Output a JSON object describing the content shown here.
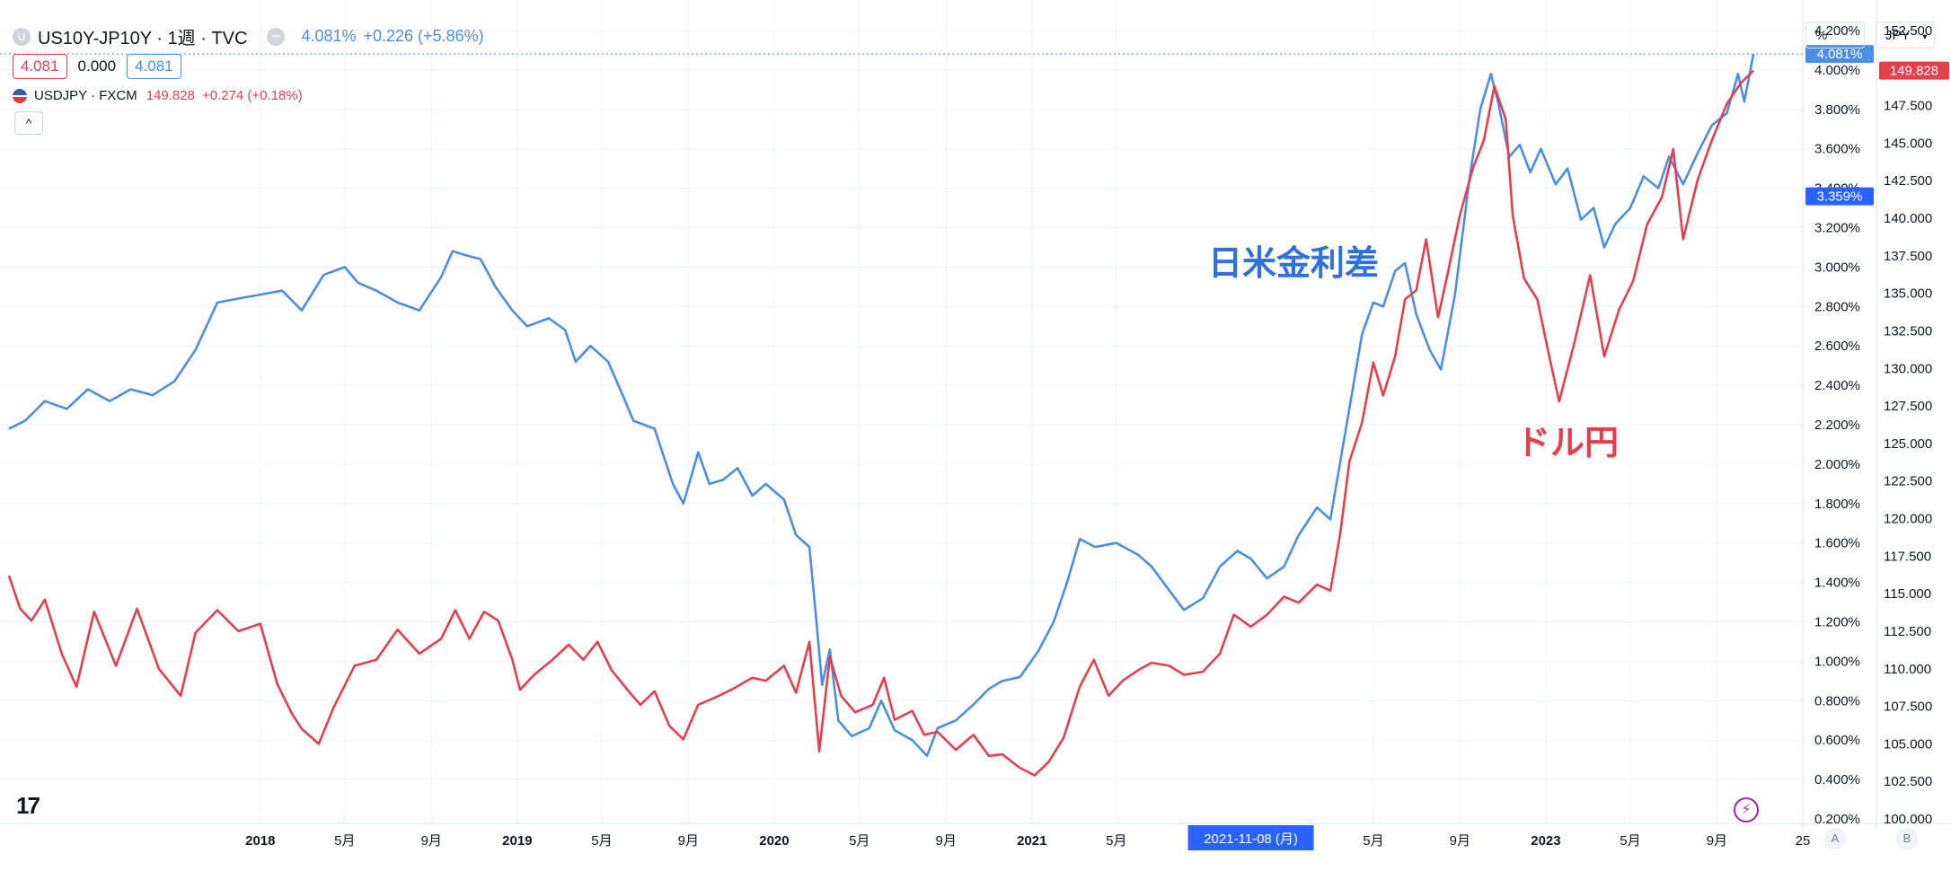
{
  "legend": {
    "spread": {
      "icon_letter": "U",
      "symbol": "US10Y-JP10Y · 1週 · TVC",
      "last": "4.081%",
      "change": "+0.226 (+5.86%)",
      "ohlc_box1": "4.081",
      "ohlc_mid": "0.000",
      "ohlc_box2": "4.081"
    },
    "usdjpy": {
      "symbol": "USDJPY · FXCM",
      "last": "149.828",
      "change": "+0.274 (+0.18%)"
    },
    "collapse_icon": "^"
  },
  "toolbar": {
    "unit_left": "%",
    "unit_right": "JPY"
  },
  "price_tags": {
    "spread_last": "4.081%",
    "usdjpy_last": "149.828",
    "spread_marker": "3.359%"
  },
  "crosshair_date": "2021-11-08 (月)",
  "annotations": {
    "spread": "日米金利差",
    "usdjpy": "ドル円"
  },
  "scale_buttons": {
    "a": "A",
    "b": "B"
  },
  "colors": {
    "spread": "#4a90e2",
    "usdjpy": "#e53e4d",
    "grid": "#f0f3fa",
    "crosshair_tag": "#2962ff"
  },
  "icons": {
    "logo": "tradingview-logo-icon",
    "bolt": "lightning-icon",
    "flag": "us-jp-flag-icon"
  },
  "chart_data": {
    "type": "line",
    "x_unit": "weekly",
    "x_range": [
      "2017-01-09",
      "2024-01-01"
    ],
    "left_axis": {
      "unit": "%",
      "ticks": [
        "0.200%",
        "0.400%",
        "0.600%",
        "0.800%",
        "1.000%",
        "1.200%",
        "1.400%",
        "1.600%",
        "1.800%",
        "2.000%",
        "2.200%",
        "2.400%",
        "2.600%",
        "2.800%",
        "3.000%",
        "3.200%",
        "3.400%",
        "3.600%",
        "3.800%",
        "4.000%",
        "4.200%"
      ],
      "range": [
        0.2,
        4.2
      ]
    },
    "right_axis": {
      "unit": "JPY",
      "ticks": [
        "100.000",
        "102.500",
        "105.000",
        "107.500",
        "110.000",
        "112.500",
        "115.000",
        "117.500",
        "120.000",
        "122.500",
        "125.000",
        "127.500",
        "130.000",
        "132.500",
        "135.000",
        "137.500",
        "140.000",
        "142.500",
        "145.000",
        "147.500",
        "150.000",
        "152.500"
      ],
      "range": [
        100,
        152.5
      ]
    },
    "x_tick_labels": [
      {
        "date": "2018-01-01",
        "label": "2018",
        "bold": true
      },
      {
        "date": "2018-05-01",
        "label": "5月"
      },
      {
        "date": "2018-09-01",
        "label": "9月"
      },
      {
        "date": "2019-01-01",
        "label": "2019",
        "bold": true
      },
      {
        "date": "2019-05-01",
        "label": "5月"
      },
      {
        "date": "2019-09-01",
        "label": "9月"
      },
      {
        "date": "2020-01-01",
        "label": "2020",
        "bold": true
      },
      {
        "date": "2020-05-01",
        "label": "5月"
      },
      {
        "date": "2020-09-01",
        "label": "9月"
      },
      {
        "date": "2021-01-01",
        "label": "2021",
        "bold": true
      },
      {
        "date": "2021-05-01",
        "label": "5月"
      },
      {
        "date": "2022-05-01",
        "label": "5月"
      },
      {
        "date": "2022-09-01",
        "label": "9月"
      },
      {
        "date": "2023-01-01",
        "label": "2023",
        "bold": true
      },
      {
        "date": "2023-05-01",
        "label": "5月"
      },
      {
        "date": "2023-09-01",
        "label": "9月"
      },
      {
        "date": "2024-01-01",
        "label": "25"
      }
    ],
    "series": [
      {
        "name": "US10Y-JP10Y",
        "axis": "left",
        "color": "#4a90e2",
        "points": [
          [
            "2017-01-09",
            2.18
          ],
          [
            "2017-02-01",
            2.22
          ],
          [
            "2017-03-01",
            2.32
          ],
          [
            "2017-04-01",
            2.28
          ],
          [
            "2017-05-01",
            2.38
          ],
          [
            "2017-06-01",
            2.32
          ],
          [
            "2017-07-01",
            2.38
          ],
          [
            "2017-08-01",
            2.35
          ],
          [
            "2017-09-01",
            2.42
          ],
          [
            "2017-10-01",
            2.58
          ],
          [
            "2017-11-01",
            2.82
          ],
          [
            "2017-12-01",
            2.84
          ],
          [
            "2018-01-01",
            2.86
          ],
          [
            "2018-02-01",
            2.88
          ],
          [
            "2018-03-01",
            2.78
          ],
          [
            "2018-04-01",
            2.96
          ],
          [
            "2018-05-01",
            3.0
          ],
          [
            "2018-05-20",
            2.92
          ],
          [
            "2018-06-15",
            2.88
          ],
          [
            "2018-07-15",
            2.82
          ],
          [
            "2018-08-15",
            2.78
          ],
          [
            "2018-09-15",
            2.95
          ],
          [
            "2018-10-01",
            3.08
          ],
          [
            "2018-10-20",
            3.06
          ],
          [
            "2018-11-10",
            3.04
          ],
          [
            "2018-12-01",
            2.9
          ],
          [
            "2018-12-25",
            2.78
          ],
          [
            "2019-01-15",
            2.7
          ],
          [
            "2019-02-15",
            2.74
          ],
          [
            "2019-03-10",
            2.68
          ],
          [
            "2019-03-25",
            2.52
          ],
          [
            "2019-04-15",
            2.6
          ],
          [
            "2019-05-10",
            2.52
          ],
          [
            "2019-06-01",
            2.34
          ],
          [
            "2019-06-15",
            2.22
          ],
          [
            "2019-07-15",
            2.18
          ],
          [
            "2019-08-10",
            1.9
          ],
          [
            "2019-08-25",
            1.8
          ],
          [
            "2019-09-15",
            2.06
          ],
          [
            "2019-10-01",
            1.9
          ],
          [
            "2019-10-20",
            1.92
          ],
          [
            "2019-11-10",
            1.98
          ],
          [
            "2019-12-01",
            1.84
          ],
          [
            "2019-12-20",
            1.9
          ],
          [
            "2020-01-15",
            1.82
          ],
          [
            "2020-02-01",
            1.64
          ],
          [
            "2020-02-20",
            1.58
          ],
          [
            "2020-03-01",
            1.2
          ],
          [
            "2020-03-09",
            0.88
          ],
          [
            "2020-03-20",
            1.06
          ],
          [
            "2020-04-01",
            0.7
          ],
          [
            "2020-04-20",
            0.62
          ],
          [
            "2020-05-15",
            0.66
          ],
          [
            "2020-06-01",
            0.8
          ],
          [
            "2020-06-20",
            0.65
          ],
          [
            "2020-07-15",
            0.6
          ],
          [
            "2020-08-05",
            0.52
          ],
          [
            "2020-08-20",
            0.66
          ],
          [
            "2020-09-15",
            0.7
          ],
          [
            "2020-10-10",
            0.78
          ],
          [
            "2020-11-01",
            0.86
          ],
          [
            "2020-11-20",
            0.9
          ],
          [
            "2020-12-15",
            0.92
          ],
          [
            "2021-01-10",
            1.05
          ],
          [
            "2021-02-01",
            1.2
          ],
          [
            "2021-02-20",
            1.4
          ],
          [
            "2021-03-10",
            1.62
          ],
          [
            "2021-04-01",
            1.58
          ],
          [
            "2021-05-01",
            1.6
          ],
          [
            "2021-06-01",
            1.54
          ],
          [
            "2021-06-20",
            1.48
          ],
          [
            "2021-07-15",
            1.36
          ],
          [
            "2021-08-05",
            1.26
          ],
          [
            "2021-09-01",
            1.32
          ],
          [
            "2021-09-25",
            1.48
          ],
          [
            "2021-10-20",
            1.56
          ],
          [
            "2021-11-08",
            1.52
          ],
          [
            "2021-12-01",
            1.42
          ],
          [
            "2021-12-25",
            1.48
          ],
          [
            "2022-01-15",
            1.64
          ],
          [
            "2022-02-10",
            1.78
          ],
          [
            "2022-03-01",
            1.72
          ],
          [
            "2022-03-25",
            2.22
          ],
          [
            "2022-04-15",
            2.66
          ],
          [
            "2022-05-01",
            2.82
          ],
          [
            "2022-05-15",
            2.8
          ],
          [
            "2022-06-01",
            2.98
          ],
          [
            "2022-06-15",
            3.02
          ],
          [
            "2022-07-01",
            2.76
          ],
          [
            "2022-07-20",
            2.58
          ],
          [
            "2022-08-05",
            2.48
          ],
          [
            "2022-08-25",
            2.86
          ],
          [
            "2022-09-15",
            3.46
          ],
          [
            "2022-09-30",
            3.8
          ],
          [
            "2022-10-15",
            3.98
          ],
          [
            "2022-10-25",
            3.84
          ],
          [
            "2022-11-10",
            3.56
          ],
          [
            "2022-11-25",
            3.62
          ],
          [
            "2022-12-10",
            3.48
          ],
          [
            "2022-12-25",
            3.6
          ],
          [
            "2023-01-15",
            3.42
          ],
          [
            "2023-02-01",
            3.5
          ],
          [
            "2023-02-20",
            3.24
          ],
          [
            "2023-03-10",
            3.3
          ],
          [
            "2023-03-25",
            3.1
          ],
          [
            "2023-04-10",
            3.22
          ],
          [
            "2023-05-01",
            3.3
          ],
          [
            "2023-05-20",
            3.46
          ],
          [
            "2023-06-10",
            3.4
          ],
          [
            "2023-06-25",
            3.56
          ],
          [
            "2023-07-15",
            3.42
          ],
          [
            "2023-08-05",
            3.58
          ],
          [
            "2023-08-25",
            3.72
          ],
          [
            "2023-09-15",
            3.78
          ],
          [
            "2023-10-01",
            3.98
          ],
          [
            "2023-10-10",
            3.84
          ],
          [
            "2023-10-23",
            4.081
          ]
        ]
      },
      {
        "name": "USDJPY",
        "axis": "right",
        "color": "#e53e4d",
        "points": [
          [
            "2017-01-09",
            116.2
          ],
          [
            "2017-01-25",
            114.0
          ],
          [
            "2017-02-10",
            113.2
          ],
          [
            "2017-03-01",
            114.6
          ],
          [
            "2017-03-25",
            111.0
          ],
          [
            "2017-04-15",
            108.8
          ],
          [
            "2017-05-10",
            113.8
          ],
          [
            "2017-06-10",
            110.2
          ],
          [
            "2017-07-10",
            114.0
          ],
          [
            "2017-08-10",
            110.0
          ],
          [
            "2017-09-10",
            108.2
          ],
          [
            "2017-10-01",
            112.4
          ],
          [
            "2017-11-01",
            113.9
          ],
          [
            "2017-12-01",
            112.5
          ],
          [
            "2018-01-01",
            113.0
          ],
          [
            "2018-01-25",
            109.0
          ],
          [
            "2018-02-15",
            107.0
          ],
          [
            "2018-03-01",
            106.0
          ],
          [
            "2018-03-25",
            105.0
          ],
          [
            "2018-04-15",
            107.4
          ],
          [
            "2018-05-15",
            110.2
          ],
          [
            "2018-06-15",
            110.6
          ],
          [
            "2018-07-15",
            112.6
          ],
          [
            "2018-08-15",
            111.0
          ],
          [
            "2018-09-15",
            112.0
          ],
          [
            "2018-10-05",
            113.9
          ],
          [
            "2018-10-25",
            112.0
          ],
          [
            "2018-11-15",
            113.8
          ],
          [
            "2018-12-05",
            113.2
          ],
          [
            "2018-12-25",
            110.6
          ],
          [
            "2019-01-05",
            108.6
          ],
          [
            "2019-01-25",
            109.6
          ],
          [
            "2019-02-20",
            110.6
          ],
          [
            "2019-03-15",
            111.6
          ],
          [
            "2019-04-05",
            110.6
          ],
          [
            "2019-04-25",
            111.8
          ],
          [
            "2019-05-15",
            109.9
          ],
          [
            "2019-06-10",
            108.4
          ],
          [
            "2019-06-25",
            107.6
          ],
          [
            "2019-07-15",
            108.5
          ],
          [
            "2019-08-05",
            106.2
          ],
          [
            "2019-08-25",
            105.3
          ],
          [
            "2019-09-15",
            107.6
          ],
          [
            "2019-10-10",
            108.1
          ],
          [
            "2019-11-01",
            108.6
          ],
          [
            "2019-12-01",
            109.4
          ],
          [
            "2019-12-20",
            109.2
          ],
          [
            "2020-01-15",
            110.2
          ],
          [
            "2020-02-01",
            108.4
          ],
          [
            "2020-02-20",
            111.8
          ],
          [
            "2020-03-05",
            104.5
          ],
          [
            "2020-03-20",
            110.8
          ],
          [
            "2020-04-05",
            108.2
          ],
          [
            "2020-04-25",
            107.1
          ],
          [
            "2020-05-20",
            107.6
          ],
          [
            "2020-06-05",
            109.4
          ],
          [
            "2020-06-20",
            106.6
          ],
          [
            "2020-07-15",
            107.2
          ],
          [
            "2020-08-01",
            105.6
          ],
          [
            "2020-08-20",
            105.8
          ],
          [
            "2020-09-15",
            104.6
          ],
          [
            "2020-10-10",
            105.6
          ],
          [
            "2020-11-01",
            104.2
          ],
          [
            "2020-11-20",
            104.3
          ],
          [
            "2020-12-15",
            103.4
          ],
          [
            "2021-01-05",
            102.9
          ],
          [
            "2021-01-25",
            103.8
          ],
          [
            "2021-02-15",
            105.4
          ],
          [
            "2021-03-10",
            108.8
          ],
          [
            "2021-03-30",
            110.6
          ],
          [
            "2021-04-20",
            108.2
          ],
          [
            "2021-05-10",
            109.2
          ],
          [
            "2021-06-01",
            109.9
          ],
          [
            "2021-06-20",
            110.4
          ],
          [
            "2021-07-15",
            110.2
          ],
          [
            "2021-08-05",
            109.6
          ],
          [
            "2021-09-01",
            109.8
          ],
          [
            "2021-09-25",
            111.0
          ],
          [
            "2021-10-15",
            113.6
          ],
          [
            "2021-11-08",
            112.8
          ],
          [
            "2021-12-01",
            113.6
          ],
          [
            "2021-12-25",
            114.8
          ],
          [
            "2022-01-15",
            114.4
          ],
          [
            "2022-02-10",
            115.6
          ],
          [
            "2022-03-01",
            115.2
          ],
          [
            "2022-03-15",
            119.0
          ],
          [
            "2022-03-28",
            123.8
          ],
          [
            "2022-04-15",
            126.4
          ],
          [
            "2022-05-01",
            130.4
          ],
          [
            "2022-05-15",
            128.2
          ],
          [
            "2022-06-01",
            130.8
          ],
          [
            "2022-06-15",
            134.6
          ],
          [
            "2022-07-01",
            135.2
          ],
          [
            "2022-07-15",
            138.6
          ],
          [
            "2022-08-01",
            133.4
          ],
          [
            "2022-08-15",
            136.4
          ],
          [
            "2022-09-01",
            140.2
          ],
          [
            "2022-09-20",
            143.4
          ],
          [
            "2022-10-05",
            145.2
          ],
          [
            "2022-10-20",
            148.8
          ],
          [
            "2022-11-05",
            146.6
          ],
          [
            "2022-11-15",
            140.2
          ],
          [
            "2022-12-01",
            136.0
          ],
          [
            "2022-12-20",
            134.6
          ],
          [
            "2023-01-05",
            131.0
          ],
          [
            "2023-01-20",
            127.8
          ],
          [
            "2023-02-10",
            131.6
          ],
          [
            "2023-03-05",
            136.2
          ],
          [
            "2023-03-25",
            130.8
          ],
          [
            "2023-04-15",
            133.9
          ],
          [
            "2023-05-05",
            135.8
          ],
          [
            "2023-05-25",
            139.6
          ],
          [
            "2023-06-15",
            141.4
          ],
          [
            "2023-07-01",
            144.6
          ],
          [
            "2023-07-15",
            138.6
          ],
          [
            "2023-08-05",
            142.6
          ],
          [
            "2023-08-25",
            145.2
          ],
          [
            "2023-09-15",
            147.6
          ],
          [
            "2023-10-05",
            149.0
          ],
          [
            "2023-10-23",
            149.828
          ]
        ]
      }
    ]
  }
}
